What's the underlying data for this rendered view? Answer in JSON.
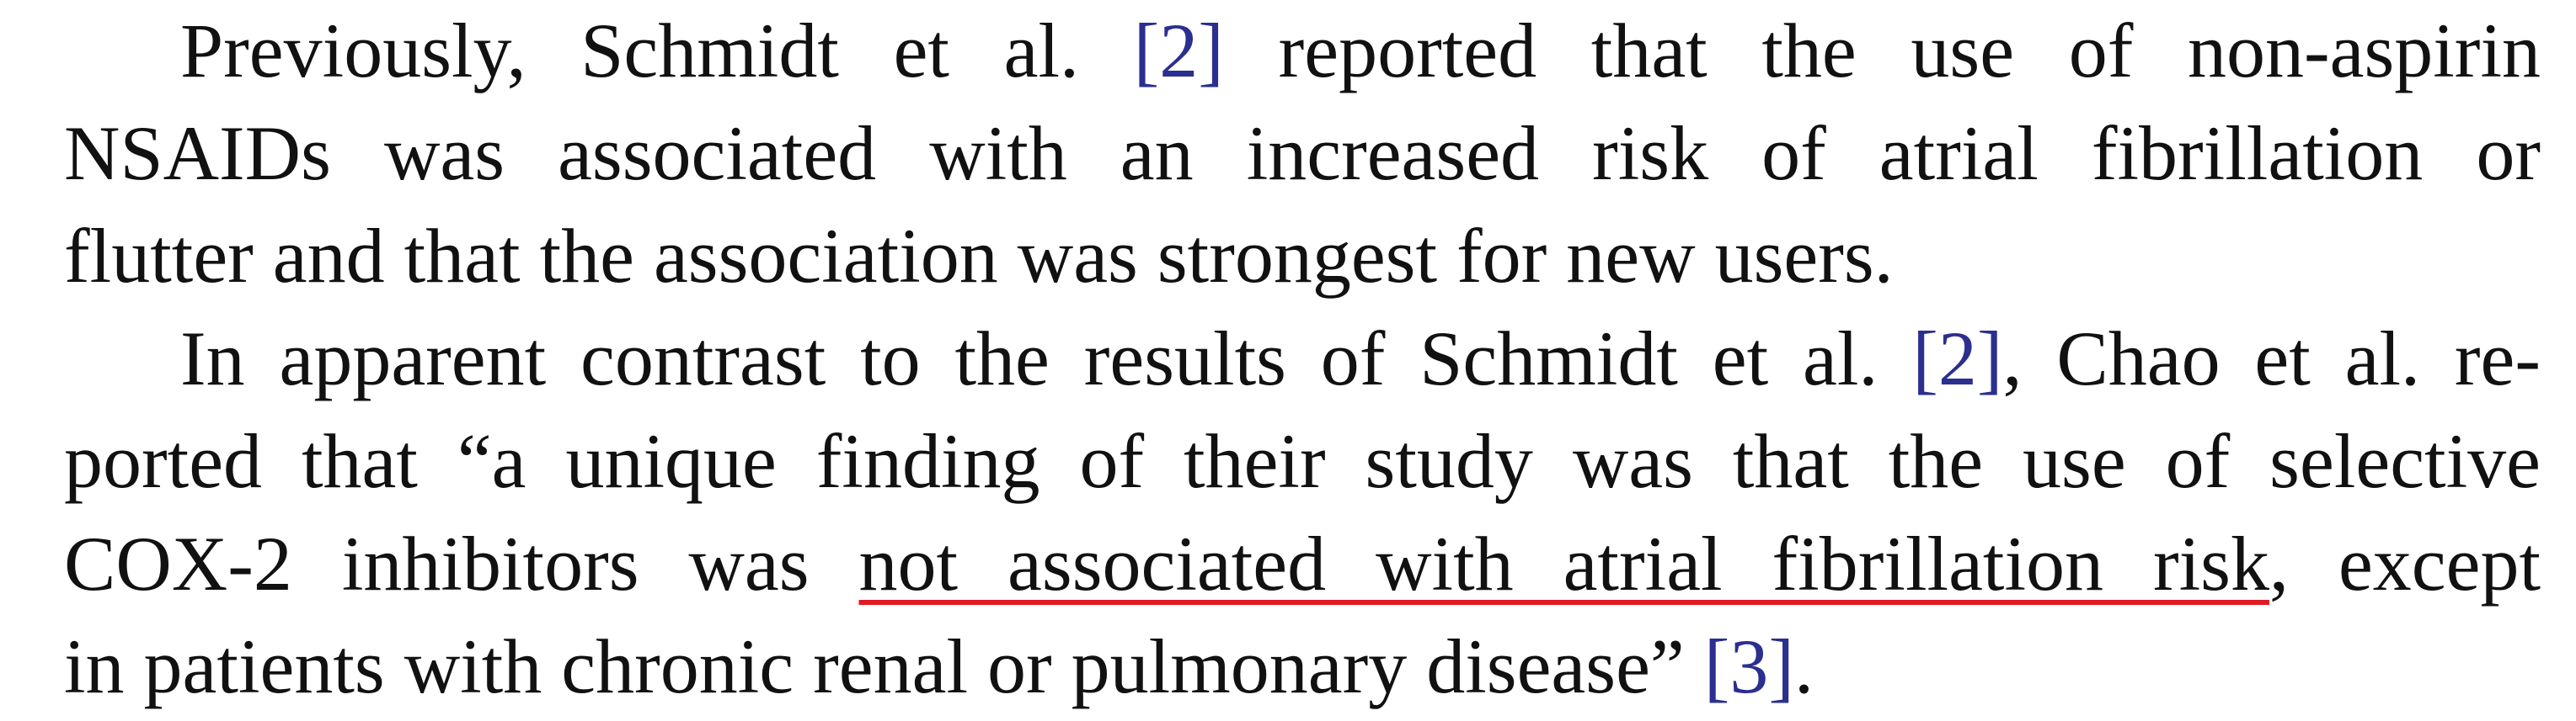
{
  "paragraphs": [
    {
      "lines": [
        {
          "before": "Previously, Schmidt et al. ",
          "cite": "[2]",
          "after": " reported that the use of non-aspirin"
        },
        {
          "text": "NSAIDs was associated with an increased risk of atrial fibrillation or"
        },
        {
          "text": "flutter and that the association was strongest for new users."
        }
      ]
    },
    {
      "lines": [
        {
          "before": "In apparent contrast to the results of Schmidt et al. ",
          "cite": "[2]",
          "after": ", Chao et al. re-"
        },
        {
          "text": "ported that “a unique finding of their study was that the use of selective"
        },
        {
          "before": "COX-2 inhibitors was ",
          "highlight": "not associated with atrial fibrillation risk",
          "after": ", except"
        },
        {
          "before": "in patients with chronic renal or pulmonary disease” ",
          "cite": "[3]",
          "after": "."
        }
      ]
    }
  ],
  "colors": {
    "text": "#111111",
    "citation": "#2b2f8f",
    "underline": "#e01b24"
  }
}
